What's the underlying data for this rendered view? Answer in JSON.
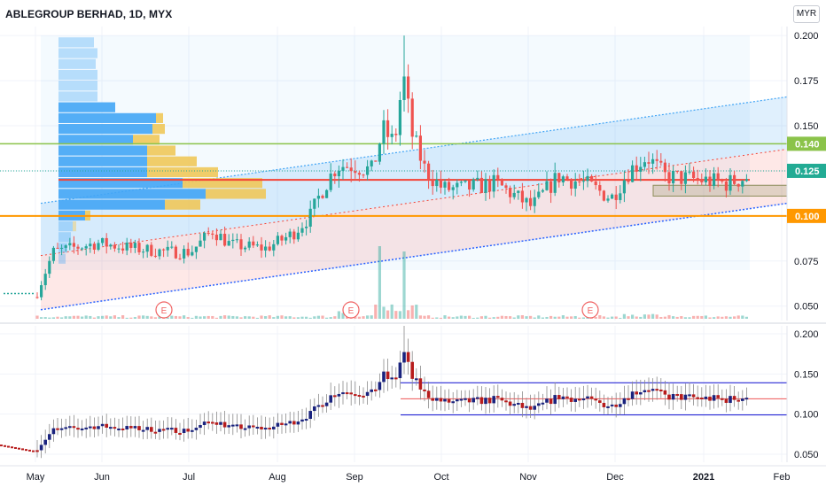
{
  "header": {
    "title": "ABLEGROUP BERHAD, 1D, MYX",
    "currency_button": "MYR"
  },
  "colors": {
    "up": "#26a69a",
    "down": "#ef5350",
    "green_level": "#8bc34a",
    "orange_level": "#ff9800",
    "red_level": "#f44336",
    "price_tag": "#22ab94",
    "channel_blue": "#2962ff",
    "volume_profile_blue": "#42a5f5",
    "volume_profile_yellow": "#f0c85a",
    "lower_candle_up": "#1a237e",
    "lower_candle_down": "#b71c1c"
  },
  "chart_data": [
    {
      "type": "candlestick",
      "title": "ABLEGROUP BERHAD, 1D, MYX",
      "x_ticks": [
        "May",
        "Jun",
        "Jul",
        "Aug",
        "Sep",
        "Oct",
        "Nov",
        "Dec",
        "2021",
        "Feb"
      ],
      "y_ticks": [
        "0.200",
        "0.175",
        "0.150",
        "0.125",
        "0.100",
        "0.075",
        "0.050"
      ],
      "ylim": [
        0.042,
        0.205
      ],
      "currency": "MYR",
      "price_labels": [
        {
          "value": 0.14,
          "text": "0.140",
          "color": "#8bc34a"
        },
        {
          "value": 0.125,
          "text": "0.125",
          "color": "#22ab94"
        },
        {
          "value": 0.1,
          "text": "0.100",
          "color": "#ff9800"
        }
      ],
      "horizontal_levels": [
        0.14,
        0.1,
        0.12
      ],
      "close_series_approx": [
        {
          "x": "May",
          "y": 0.062
        },
        {
          "x": "Jun",
          "y": 0.08
        },
        {
          "x": "Jul",
          "y": 0.082
        },
        {
          "x": "Aug",
          "y": 0.085
        },
        {
          "x": "Sep",
          "y": 0.13
        },
        {
          "x": "Sep",
          "y": 0.175
        },
        {
          "x": "Oct",
          "y": 0.12
        },
        {
          "x": "Nov",
          "y": 0.105
        },
        {
          "x": "Dec",
          "y": 0.13
        },
        {
          "x": "2021",
          "y": 0.12
        }
      ],
      "earnings_markers": [
        "E",
        "E",
        "E"
      ]
    },
    {
      "type": "candlestick",
      "x_ticks": [
        "May",
        "Jun",
        "Jul",
        "Aug",
        "Sep",
        "Oct",
        "Nov",
        "Dec",
        "2021",
        "Feb"
      ],
      "y_ticks": [
        "0.200",
        "0.150",
        "0.100",
        "0.050"
      ],
      "ylim": [
        0.04,
        0.21
      ],
      "horizontal_levels": [
        0.14,
        0.12,
        0.1
      ]
    }
  ]
}
